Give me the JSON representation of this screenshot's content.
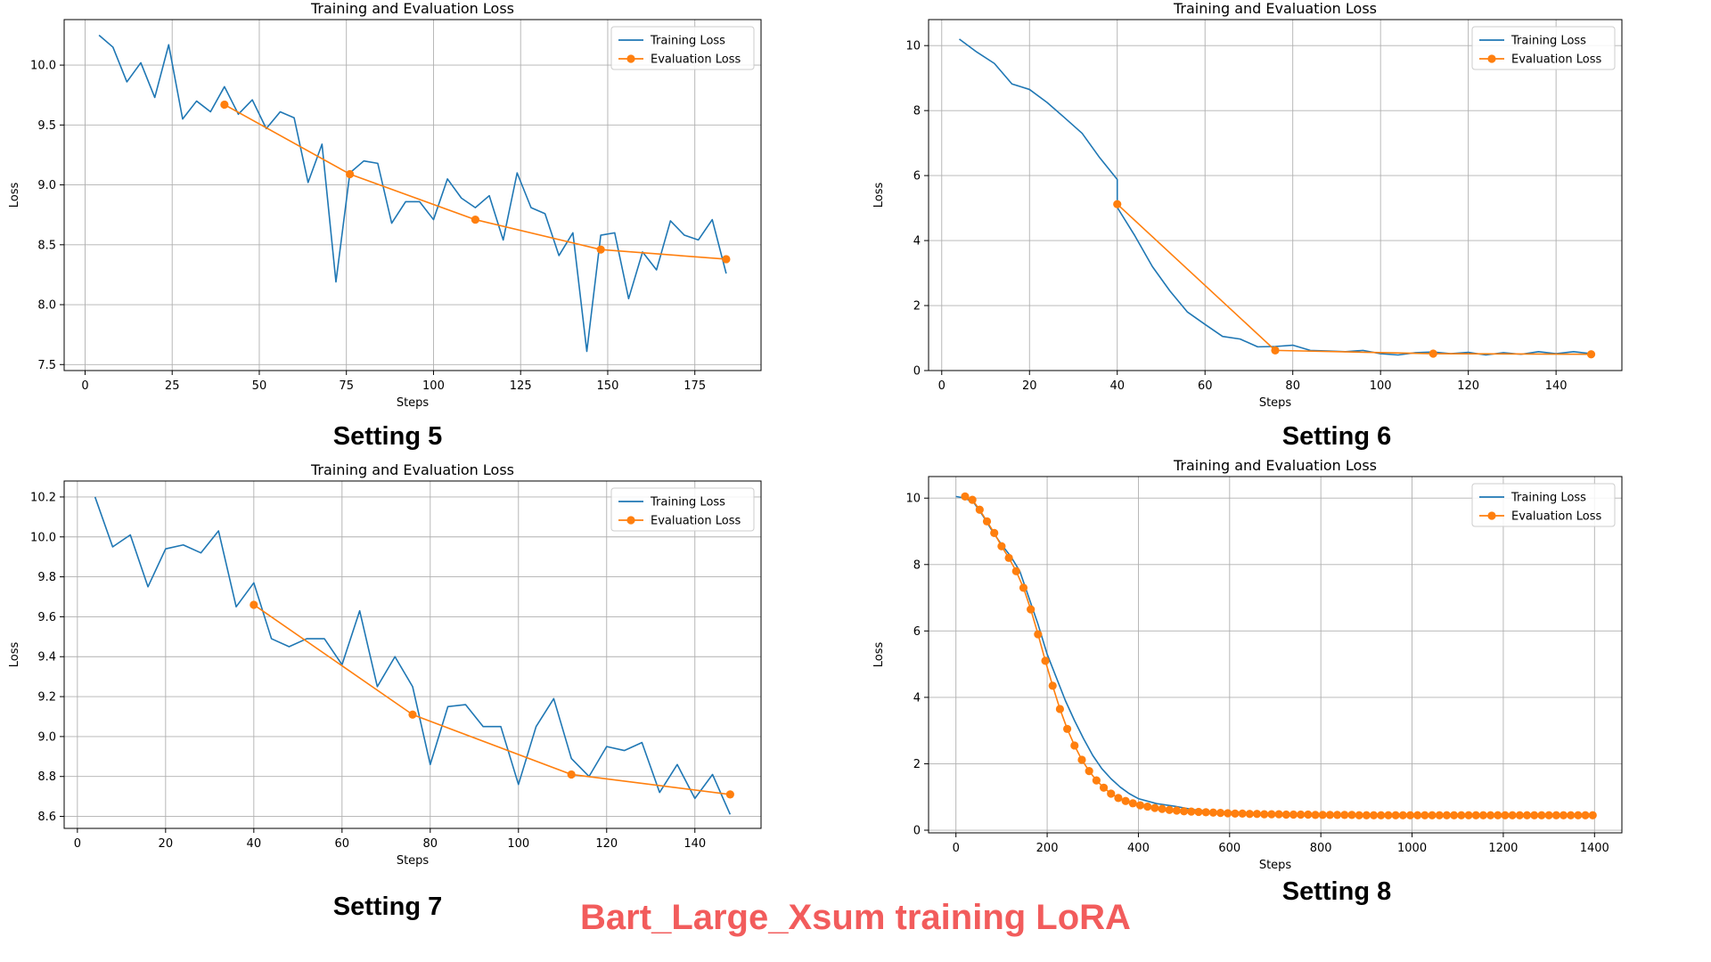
{
  "main_title": "Bart_Large_Xsum training LoRA",
  "colors": {
    "training": "#1f77b4",
    "evaluation": "#ff7f0e",
    "grid": "#b0b0b0",
    "caption_accent": "#f25c5c"
  },
  "chart_data": [
    {
      "type": "line",
      "caption": "Setting 5",
      "title": "Training and Evaluation Loss",
      "xlabel": "Steps",
      "ylabel": "Loss",
      "xlim": [
        -6,
        194
      ],
      "ylim": [
        7.45,
        10.38
      ],
      "xticks": [
        0,
        25,
        50,
        75,
        100,
        125,
        150,
        175
      ],
      "yticks": [
        7.5,
        8.0,
        8.5,
        9.0,
        9.5,
        10.0
      ],
      "ytick_labels": [
        "7.5",
        "8.0",
        "8.5",
        "9.0",
        "9.5",
        "10.0"
      ],
      "legend": "top-right",
      "grid": true,
      "series": [
        {
          "name": "Training Loss",
          "marker": false,
          "x": [
            4,
            8,
            12,
            16,
            20,
            24,
            28,
            32,
            36,
            40,
            44,
            48,
            52,
            56,
            60,
            64,
            68,
            72,
            76,
            80,
            84,
            88,
            92,
            96,
            100,
            104,
            108,
            112,
            116,
            120,
            124,
            128,
            132,
            136,
            140,
            144,
            148,
            152,
            156,
            160,
            164,
            168,
            172,
            176,
            180,
            184
          ],
          "y": [
            10.25,
            10.15,
            9.86,
            10.02,
            9.73,
            10.17,
            9.55,
            9.7,
            9.61,
            9.82,
            9.59,
            9.71,
            9.47,
            9.61,
            9.56,
            9.02,
            9.34,
            8.19,
            9.1,
            9.2,
            9.18,
            8.68,
            8.86,
            8.86,
            8.71,
            9.05,
            8.89,
            8.81,
            8.91,
            8.54,
            9.1,
            8.81,
            8.76,
            8.41,
            8.6,
            7.61,
            8.58,
            8.6,
            8.05,
            8.44,
            8.29,
            8.7,
            8.58,
            8.54,
            8.71,
            8.26
          ]
        },
        {
          "name": "Evaluation Loss",
          "marker": true,
          "x": [
            40,
            76,
            112,
            148,
            184
          ],
          "y": [
            9.67,
            9.09,
            8.71,
            8.46,
            8.38
          ]
        }
      ]
    },
    {
      "type": "line",
      "caption": "Setting 6",
      "title": "Training and Evaluation Loss",
      "xlabel": "Steps",
      "ylabel": "Loss",
      "xlim": [
        -3,
        155
      ],
      "ylim": [
        0,
        10.8
      ],
      "xticks": [
        0,
        20,
        40,
        60,
        80,
        100,
        120,
        140
      ],
      "yticks": [
        0,
        2,
        4,
        6,
        8,
        10
      ],
      "ytick_labels": [
        "0",
        "2",
        "4",
        "6",
        "8",
        "10"
      ],
      "legend": "top-right",
      "grid": true,
      "series": [
        {
          "name": "Training Loss",
          "marker": false,
          "x": [
            4,
            8,
            12,
            16,
            20,
            24,
            28,
            32,
            36,
            40,
            40,
            44,
            48,
            52,
            56,
            60,
            64,
            68,
            72,
            76,
            80,
            84,
            88,
            92,
            96,
            100,
            104,
            108,
            112,
            116,
            120,
            124,
            128,
            132,
            136,
            140,
            144,
            148
          ],
          "y": [
            10.2,
            9.8,
            9.45,
            8.82,
            8.65,
            8.25,
            7.78,
            7.3,
            6.55,
            5.88,
            5.02,
            4.15,
            3.2,
            2.45,
            1.8,
            1.42,
            1.05,
            0.97,
            0.73,
            0.74,
            0.78,
            0.62,
            0.6,
            0.58,
            0.62,
            0.52,
            0.48,
            0.55,
            0.57,
            0.52,
            0.56,
            0.48,
            0.55,
            0.5,
            0.58,
            0.52,
            0.58,
            0.52
          ]
        },
        {
          "name": "Evaluation Loss",
          "marker": true,
          "x": [
            40,
            76,
            112,
            148
          ],
          "y": [
            5.12,
            0.62,
            0.52,
            0.5
          ]
        }
      ]
    },
    {
      "type": "line",
      "caption": "Setting 7",
      "title": "Training and Evaluation Loss",
      "xlabel": "Steps",
      "ylabel": "Loss",
      "xlim": [
        -3,
        155
      ],
      "ylim": [
        8.54,
        10.28
      ],
      "xticks": [
        0,
        20,
        40,
        60,
        80,
        100,
        120,
        140
      ],
      "yticks": [
        8.6,
        8.8,
        9.0,
        9.2,
        9.4,
        9.6,
        9.8,
        10.0,
        10.2
      ],
      "ytick_labels": [
        "8.6",
        "8.8",
        "9.0",
        "9.2",
        "9.4",
        "9.6",
        "9.8",
        "10.0",
        "10.2"
      ],
      "legend": "top-right",
      "grid": true,
      "series": [
        {
          "name": "Training Loss",
          "marker": false,
          "x": [
            4,
            8,
            12,
            16,
            20,
            24,
            28,
            32,
            36,
            40,
            44,
            48,
            52,
            56,
            60,
            64,
            68,
            72,
            76,
            80,
            84,
            88,
            92,
            96,
            100,
            104,
            108,
            112,
            116,
            120,
            124,
            128,
            132,
            136,
            140,
            144,
            148
          ],
          "y": [
            10.2,
            9.95,
            10.01,
            9.75,
            9.94,
            9.96,
            9.92,
            10.03,
            9.65,
            9.77,
            9.49,
            9.45,
            9.49,
            9.49,
            9.36,
            9.63,
            9.25,
            9.4,
            9.25,
            8.86,
            9.15,
            9.16,
            9.05,
            9.05,
            8.76,
            9.05,
            9.19,
            8.89,
            8.8,
            8.95,
            8.93,
            8.97,
            8.72,
            8.86,
            8.69,
            8.81,
            8.61
          ]
        },
        {
          "name": "Evaluation Loss",
          "marker": true,
          "x": [
            40,
            76,
            112,
            148
          ],
          "y": [
            9.66,
            9.11,
            8.81,
            8.71
          ]
        }
      ]
    },
    {
      "type": "line",
      "caption": "Setting 8",
      "title": "Training and Evaluation Loss",
      "xlabel": "Steps",
      "ylabel": "Loss",
      "xlim": [
        -60,
        1460
      ],
      "ylim": [
        -0.08,
        10.65
      ],
      "xticks": [
        0,
        200,
        400,
        600,
        800,
        1000,
        1200,
        1400
      ],
      "yticks": [
        0,
        2,
        4,
        6,
        8,
        10
      ],
      "ytick_labels": [
        "0",
        "2",
        "4",
        "6",
        "8",
        "10"
      ],
      "legend": "top-right",
      "grid": true,
      "series": [
        {
          "name": "Training Loss",
          "marker": false,
          "x": [
            0,
            20,
            40,
            60,
            80,
            100,
            120,
            140,
            160,
            180,
            200,
            220,
            240,
            260,
            280,
            300,
            320,
            340,
            360,
            380,
            400,
            440,
            480,
            520,
            560,
            600,
            700,
            800,
            900,
            1000,
            1100,
            1200,
            1300,
            1400
          ],
          "y": [
            10.05,
            10.0,
            9.85,
            9.45,
            9.0,
            8.6,
            8.25,
            7.8,
            7.0,
            6.2,
            5.3,
            4.6,
            3.9,
            3.3,
            2.75,
            2.25,
            1.85,
            1.55,
            1.3,
            1.1,
            0.95,
            0.8,
            0.72,
            0.62,
            0.56,
            0.55,
            0.5,
            0.48,
            0.46,
            0.45,
            0.45,
            0.45,
            0.45,
            0.45
          ]
        },
        {
          "name": "Evaluation Loss",
          "marker": true,
          "x": [
            20,
            36,
            52,
            68,
            84,
            100,
            116,
            132,
            148,
            164,
            180,
            196,
            212,
            228,
            244,
            260,
            276,
            292,
            308,
            324,
            340,
            356,
            372,
            388,
            404,
            420,
            436,
            452,
            468,
            484,
            500,
            516,
            532,
            548,
            564,
            580,
            596,
            612,
            628,
            644,
            660,
            676,
            692,
            708,
            724,
            740,
            756,
            772,
            788,
            804,
            820,
            836,
            852,
            868,
            884,
            900,
            916,
            932,
            948,
            964,
            980,
            996,
            1012,
            1028,
            1044,
            1060,
            1076,
            1092,
            1108,
            1124,
            1140,
            1156,
            1172,
            1188,
            1204,
            1220,
            1236,
            1252,
            1268,
            1284,
            1300,
            1316,
            1332,
            1348,
            1364,
            1380,
            1396
          ],
          "y": [
            10.05,
            9.95,
            9.65,
            9.3,
            8.95,
            8.55,
            8.2,
            7.8,
            7.3,
            6.65,
            5.9,
            5.1,
            4.35,
            3.65,
            3.05,
            2.55,
            2.12,
            1.78,
            1.5,
            1.28,
            1.1,
            0.97,
            0.88,
            0.81,
            0.75,
            0.71,
            0.67,
            0.64,
            0.61,
            0.59,
            0.57,
            0.56,
            0.55,
            0.54,
            0.53,
            0.52,
            0.51,
            0.5,
            0.5,
            0.49,
            0.49,
            0.48,
            0.48,
            0.48,
            0.47,
            0.47,
            0.47,
            0.47,
            0.46,
            0.46,
            0.46,
            0.46,
            0.46,
            0.46,
            0.45,
            0.45,
            0.45,
            0.45,
            0.45,
            0.45,
            0.45,
            0.45,
            0.45,
            0.45,
            0.45,
            0.45,
            0.45,
            0.45,
            0.45,
            0.45,
            0.45,
            0.45,
            0.45,
            0.45,
            0.45,
            0.45,
            0.45,
            0.45,
            0.45,
            0.45,
            0.45,
            0.45,
            0.45,
            0.45,
            0.45,
            0.45,
            0.45
          ]
        }
      ]
    }
  ]
}
